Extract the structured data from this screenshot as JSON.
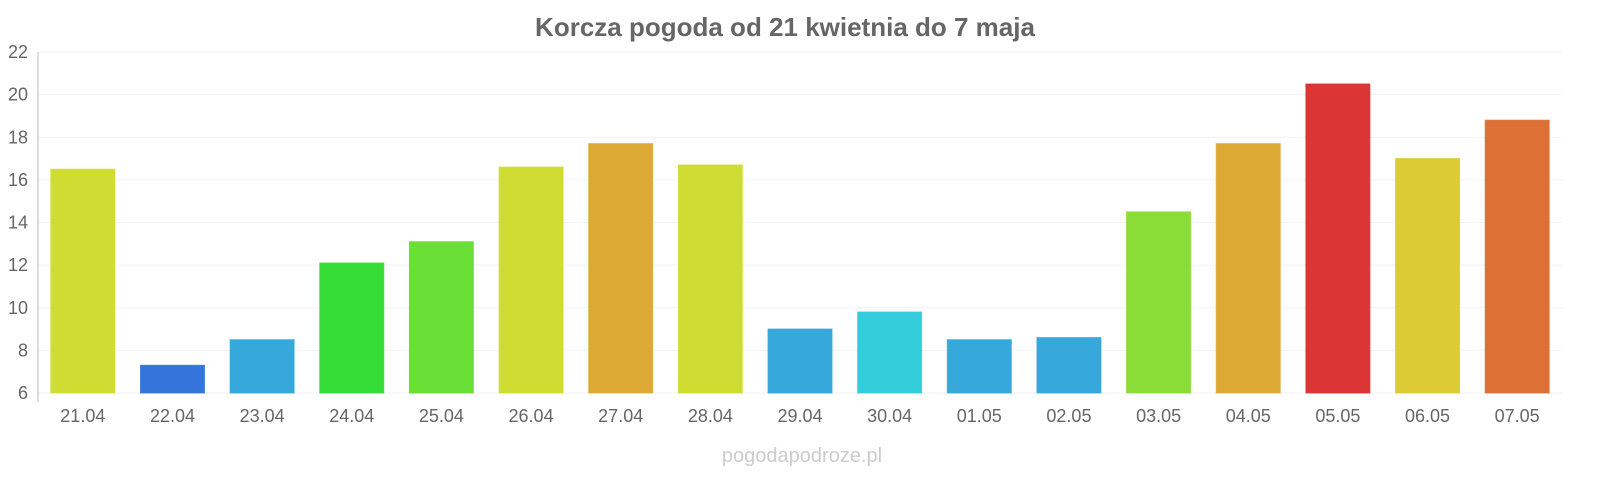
{
  "chart_data": {
    "type": "bar",
    "title": "Korcza pogoda od 21 kwietnia do 7 maja",
    "xlabel": "",
    "ylabel": "",
    "ylim": [
      6,
      22
    ],
    "yticks": [
      6,
      8,
      10,
      12,
      14,
      16,
      18,
      20,
      22
    ],
    "grid": true,
    "categories": [
      "21.04",
      "22.04",
      "23.04",
      "24.04",
      "25.04",
      "26.04",
      "27.04",
      "28.04",
      "29.04",
      "30.04",
      "01.05",
      "02.05",
      "03.05",
      "04.05",
      "05.05",
      "06.05",
      "07.05"
    ],
    "values": [
      16.5,
      7.3,
      8.5,
      12.1,
      13.1,
      16.6,
      17.7,
      16.7,
      9.0,
      9.8,
      8.5,
      8.6,
      14.5,
      17.7,
      20.5,
      17.0,
      18.8
    ],
    "colors": [
      "#cfdd33",
      "#3474db",
      "#36a8db",
      "#36dd36",
      "#6adf36",
      "#cfdd33",
      "#dca935",
      "#cfdd33",
      "#36a8db",
      "#34cddb",
      "#36a8db",
      "#36a8db",
      "#8adc36",
      "#dca935",
      "#dc3535",
      "#dccb35",
      "#dc7035"
    ]
  },
  "watermark": "pogodapodroze.pl"
}
